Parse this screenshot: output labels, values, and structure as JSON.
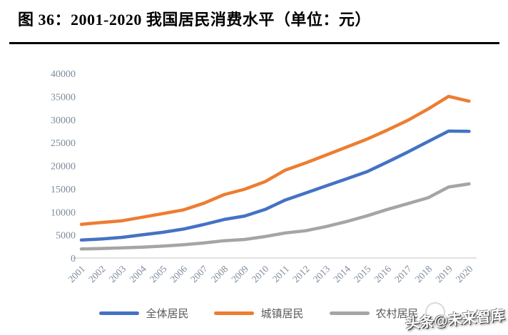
{
  "header": {
    "title": "图 36：2001-2020 我国居民消费水平（单位：元）"
  },
  "chart_data": {
    "type": "line",
    "title": "2001-2020 我国居民消费水平",
    "unit": "元",
    "x": [
      2001,
      2002,
      2003,
      2004,
      2005,
      2006,
      2007,
      2008,
      2009,
      2010,
      2011,
      2012,
      2013,
      2014,
      2015,
      2016,
      2017,
      2018,
      2019,
      2020
    ],
    "series": [
      {
        "key": "overall",
        "name": "全体居民",
        "color": "#4472C4",
        "values": [
          3887,
          4144,
          4475,
          5032,
          5573,
          6263,
          7255,
          8349,
          9098,
          10522,
          12570,
          14098,
          15632,
          17166,
          18705,
          20801,
          22969,
          25245,
          27504,
          27438
        ]
      },
      {
        "key": "urban",
        "name": "城镇居民",
        "color": "#ED7D31",
        "values": [
          7300,
          7702,
          8084,
          8850,
          9644,
          10424,
          11865,
          13741,
          14904,
          16546,
          19059,
          20620,
          22310,
          24038,
          25763,
          27736,
          29838,
          32304,
          35022,
          33994
        ]
      },
      {
        "key": "rural",
        "name": "农村居民",
        "color": "#A5A5A5",
        "values": [
          1969,
          2062,
          2190,
          2355,
          2579,
          2868,
          3265,
          3756,
          4021,
          4650,
          5432,
          5909,
          6820,
          7900,
          9145,
          10540,
          11780,
          13066,
          15382,
          16063
        ]
      }
    ],
    "ylim": [
      0,
      40000
    ],
    "yticks": [
      0,
      5000,
      10000,
      15000,
      20000,
      25000,
      30000,
      35000,
      40000
    ],
    "grid": false,
    "legend_position": "bottom",
    "axis_color": "#D9D9D9",
    "tick_label_color": "#7D8A9B",
    "line_width": 4.5
  },
  "watermark": {
    "text": "头条@未来智库"
  }
}
